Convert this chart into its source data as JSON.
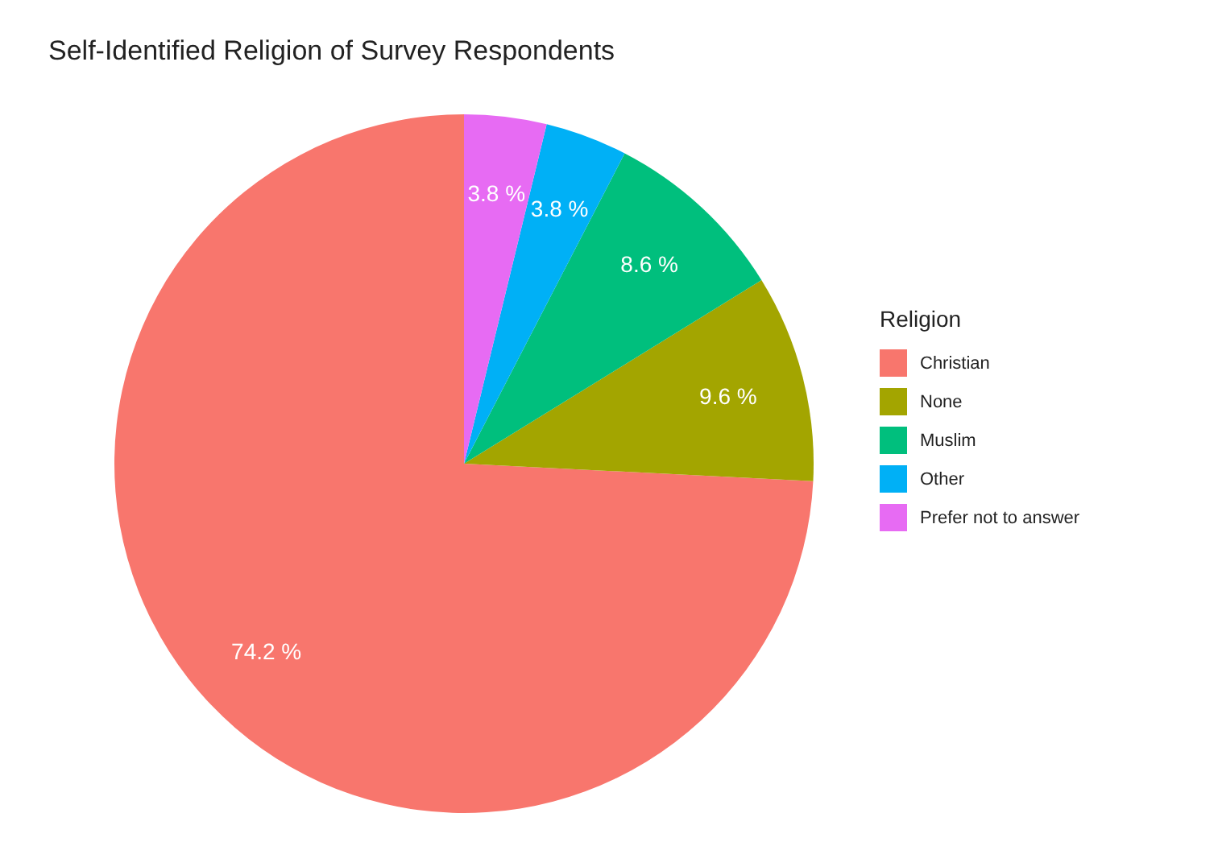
{
  "chart_data": {
    "type": "pie",
    "title": "Self-Identified Religion of Survey Respondents",
    "legend_title": "Religion",
    "legend": "right",
    "categories": [
      "Christian",
      "None",
      "Muslim",
      "Other",
      "Prefer not to answer"
    ],
    "values": [
      74.2,
      9.6,
      8.6,
      3.8,
      3.8
    ],
    "colors": [
      "#f8766d",
      "#a3a500",
      "#00bf7d",
      "#00b0f6",
      "#e76bf3"
    ],
    "value_labels": [
      "74.2 %",
      "9.6 %",
      "8.6 %",
      "3.8 %",
      "3.8 %"
    ]
  }
}
